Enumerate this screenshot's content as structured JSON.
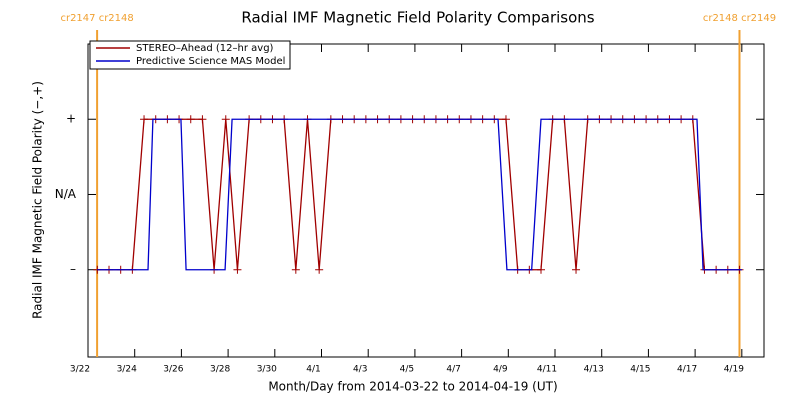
{
  "chart_data": {
    "type": "line",
    "title": "Radial IMF Magnetic Field Polarity Comparisons",
    "x_label": "Month/Day from 2014-03-22 to 2014-04-19 (UT)",
    "y_label": "Radial IMF Magnetic Field Polarity (−,+)",
    "xlim": [
      0,
      28.95
    ],
    "ylim": [
      -2.16,
      2.0
    ],
    "xticks": [
      {
        "value": 0,
        "label": "3/22"
      },
      {
        "value": 2,
        "label": "3/24"
      },
      {
        "value": 4,
        "label": "3/26"
      },
      {
        "value": 6,
        "label": "3/28"
      },
      {
        "value": 8,
        "label": "3/30"
      },
      {
        "value": 10,
        "label": "4/1"
      },
      {
        "value": 12,
        "label": "4/3"
      },
      {
        "value": 14,
        "label": "4/5"
      },
      {
        "value": 16,
        "label": "4/7"
      },
      {
        "value": 18,
        "label": "4/9"
      },
      {
        "value": 20,
        "label": "4/11"
      },
      {
        "value": 22,
        "label": "4/13"
      },
      {
        "value": 24,
        "label": "4/15"
      },
      {
        "value": 26,
        "label": "4/17"
      },
      {
        "value": 28,
        "label": "4/19"
      }
    ],
    "yticks": [
      {
        "value": 1,
        "label": "+"
      },
      {
        "value": 0,
        "label": "N/A"
      },
      {
        "value": -1,
        "label": "–"
      }
    ],
    "vlines": [
      {
        "x": 0.39,
        "label": "cr2147 cr2148",
        "color": "#f0a030"
      },
      {
        "x": 27.9,
        "label": "cr2148 cr2149",
        "color": "#f0a030"
      }
    ],
    "legend": "upper left",
    "series": [
      {
        "name": "STEREO–Ahead (12–hr avg)",
        "color": "#a00000",
        "markers": true,
        "x": [
          0.4,
          0.9,
          1.4,
          1.9,
          2.4,
          2.9,
          3.4,
          3.9,
          4.4,
          4.9,
          5.4,
          5.9,
          6.4,
          6.9,
          7.4,
          7.9,
          8.4,
          8.9,
          9.4,
          9.9,
          10.4,
          10.9,
          11.4,
          11.9,
          12.4,
          12.9,
          13.4,
          13.9,
          14.4,
          14.9,
          15.4,
          15.9,
          16.4,
          16.9,
          17.4,
          17.9,
          18.4,
          18.9,
          19.4,
          19.9,
          20.4,
          20.9,
          21.4,
          21.9,
          22.4,
          22.9,
          23.4,
          23.9,
          24.4,
          24.9,
          25.4,
          25.9,
          26.4,
          26.9,
          27.4,
          27.9
        ],
        "values": [
          -1,
          -1,
          -1,
          -1,
          1,
          1,
          1,
          1,
          1,
          1,
          -1,
          1,
          -1,
          1,
          1,
          1,
          1,
          -1,
          1,
          -1,
          1,
          1,
          1,
          1,
          1,
          1,
          1,
          1,
          1,
          1,
          1,
          1,
          1,
          1,
          1,
          1,
          -1,
          -1,
          -1,
          1,
          1,
          -1,
          1,
          1,
          1,
          1,
          1,
          1,
          1,
          1,
          1,
          1,
          -1,
          -1,
          -1,
          -1
        ]
      },
      {
        "name": "Predictive Science MAS Model",
        "color": "#0000cc",
        "markers": false,
        "x": [
          0.39,
          2.57,
          2.78,
          3.98,
          4.2,
          5.87,
          6.17,
          17.56,
          17.94,
          19.0,
          19.4,
          26.08,
          26.34,
          28.0
        ],
        "values": [
          -1,
          -1,
          1,
          1,
          -1,
          -1,
          1,
          1,
          -1,
          -1,
          1,
          1,
          -1,
          -1
        ]
      }
    ]
  }
}
